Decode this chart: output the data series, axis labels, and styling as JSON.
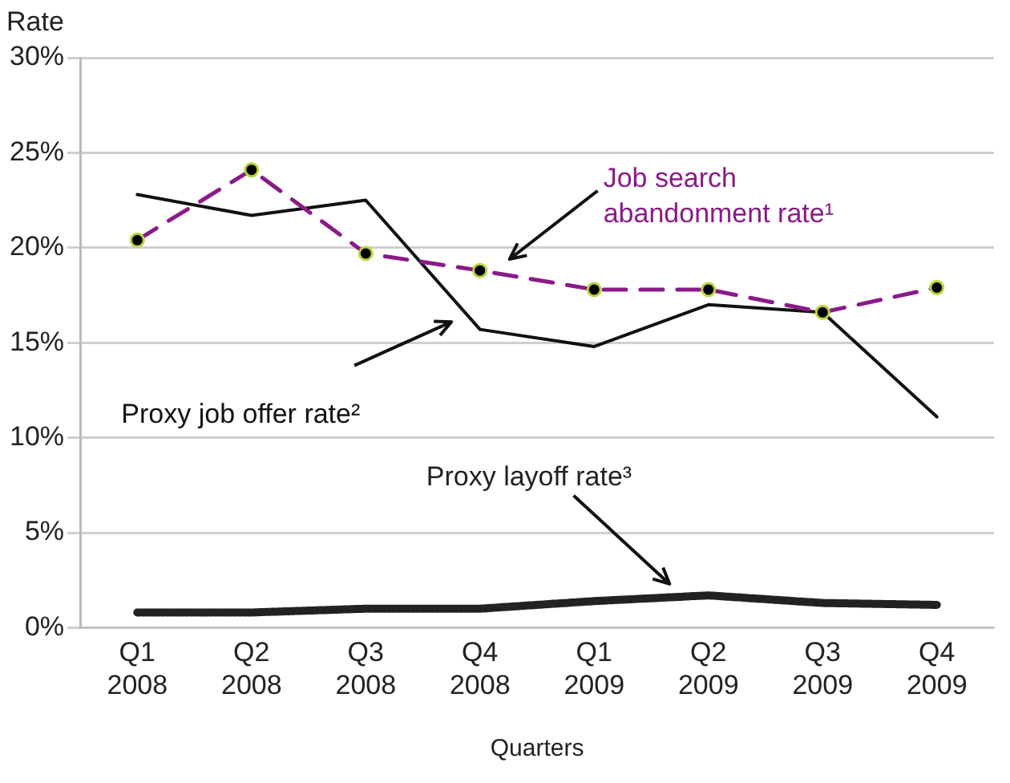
{
  "chart_data": {
    "type": "line",
    "xlabel": "Quarters",
    "ylabel": "Rate",
    "categories": [
      "Q1 2008",
      "Q2 2008",
      "Q3 2008",
      "Q4 2008",
      "Q1 2009",
      "Q2 2009",
      "Q3 2009",
      "Q4 2009"
    ],
    "series": [
      {
        "name": "Job search abandonment rate¹",
        "color": "#8b1a89",
        "line_style": "dashed",
        "marker": "circle",
        "values": [
          20.4,
          24.1,
          19.7,
          18.8,
          17.8,
          17.8,
          16.6,
          17.9
        ]
      },
      {
        "name": "Proxy job offer rate²",
        "color": "#111111",
        "line_style": "solid",
        "marker": "none",
        "values": [
          22.8,
          21.7,
          22.5,
          15.7,
          14.8,
          17.0,
          16.6,
          11.1
        ]
      },
      {
        "name": "Proxy layoff rate³",
        "color": "#222222",
        "line_style": "dotted",
        "marker": "none",
        "values": [
          0.8,
          0.8,
          1.0,
          1.0,
          1.4,
          1.7,
          1.3,
          1.2
        ]
      }
    ],
    "ylim": [
      0,
      30
    ],
    "yticks": [
      {
        "value": 0,
        "label": "0%"
      },
      {
        "value": 5,
        "label": "5%"
      },
      {
        "value": 10,
        "label": "10%"
      },
      {
        "value": 15,
        "label": "15%"
      },
      {
        "value": 20,
        "label": "20%"
      },
      {
        "value": 25,
        "label": "25%"
      },
      {
        "value": 30,
        "label": "30%"
      }
    ],
    "grid": "y",
    "legend": false
  }
}
